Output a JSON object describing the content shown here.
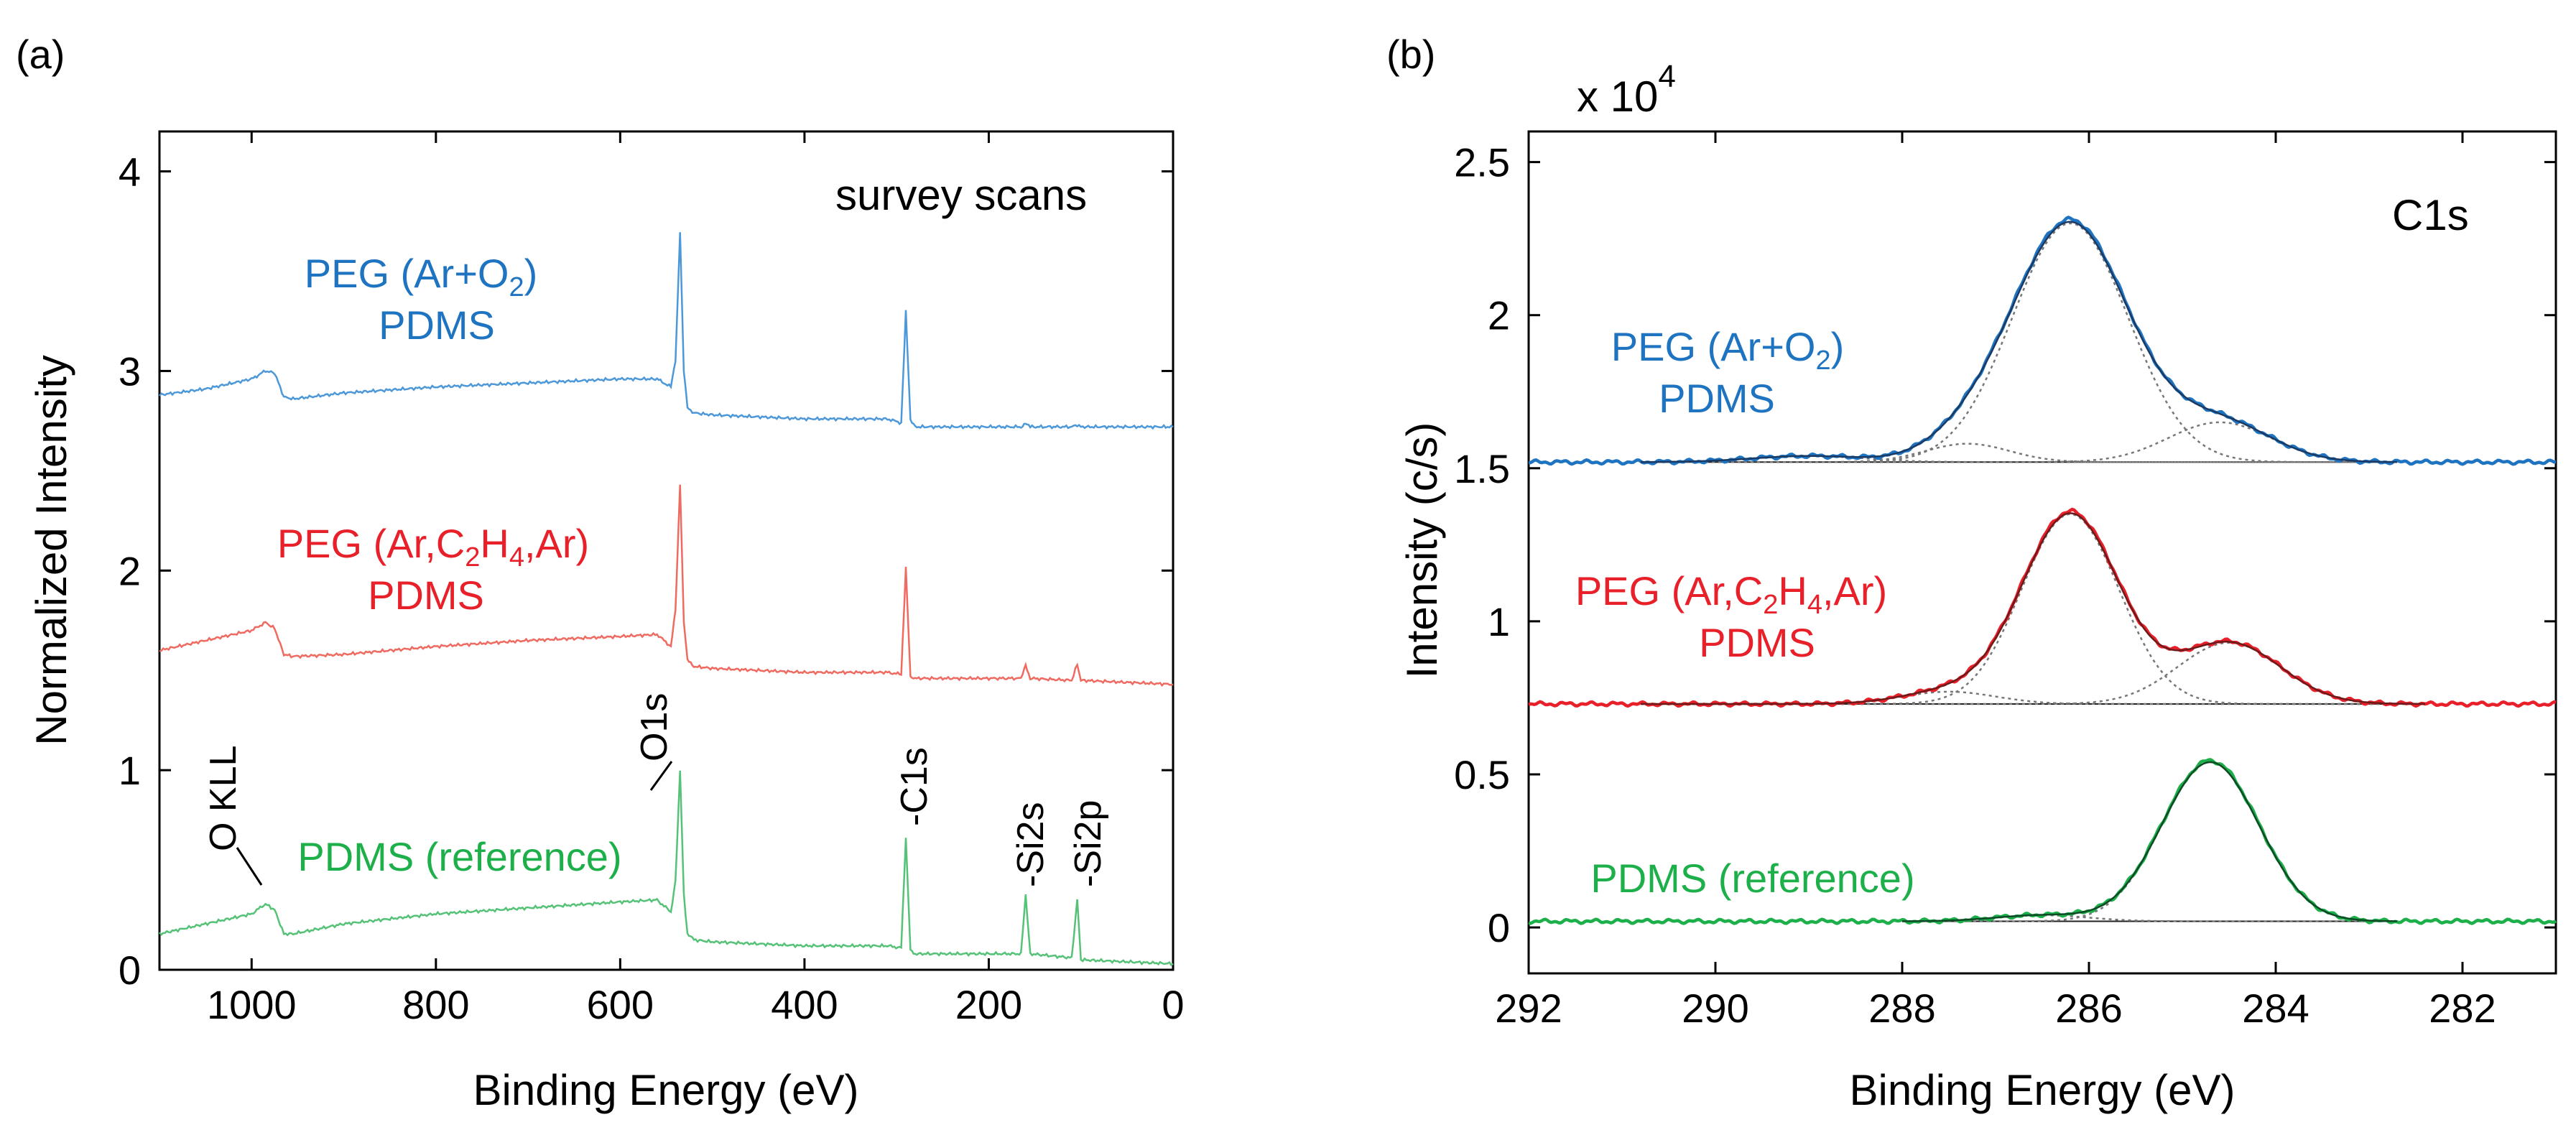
{
  "colors": {
    "peg_ar_o2": "#1f74c2",
    "peg_ar_c2h4_ar": "#e8202a",
    "pdms_ref": "#1db04a",
    "survey_blue": "#4d98d8",
    "survey_red": "#ef6a60",
    "survey_green": "#55c277",
    "dark_blue": "#1b3a63",
    "dark_red": "#6e1a1a",
    "dark_green": "#0d4a25"
  },
  "chart_data": [
    {
      "panel_label": "(a)",
      "type": "line",
      "title": "survey scans",
      "xlabel": "Binding Energy (eV)",
      "ylabel": "Normalized Intensity",
      "xlim": [
        1100,
        0
      ],
      "ylim": [
        0,
        4.2
      ],
      "x_ticks": [
        "1000",
        "800",
        "600",
        "400",
        "200",
        "0"
      ],
      "x_tick_values": [
        1000,
        800,
        600,
        400,
        200,
        0
      ],
      "y_ticks": [
        "0",
        "1",
        "2",
        "3",
        "4"
      ],
      "y_tick_values": [
        0,
        1,
        2,
        3,
        4
      ],
      "series": [
        {
          "name": "PEG (Ar+O2) PDMS",
          "label_line1_pre": "PEG (Ar+O",
          "label_line1_sub": "2",
          "label_line1_post": ")",
          "label_line2": "PDMS",
          "x": [
            1100,
            1050,
            1000,
            985,
            975,
            965,
            955,
            900,
            800,
            700,
            600,
            560,
            545,
            540,
            535,
            531,
            527,
            520,
            500,
            400,
            310,
            295,
            290,
            285,
            280,
            200,
            165,
            160,
            155,
            110,
            104,
            100,
            50,
            0
          ],
          "y": [
            2.88,
            2.91,
            2.96,
            3.0,
            2.99,
            2.87,
            2.86,
            2.89,
            2.92,
            2.94,
            2.96,
            2.96,
            2.92,
            3.05,
            3.7,
            3.0,
            2.82,
            2.79,
            2.78,
            2.76,
            2.76,
            2.74,
            3.3,
            2.75,
            2.72,
            2.72,
            2.72,
            2.74,
            2.72,
            2.72,
            2.73,
            2.72,
            2.72,
            2.72
          ]
        },
        {
          "name": "PEG (Ar,C2H4,Ar) PDMS",
          "label_line1": "PEG (Ar,C",
          "label_line1_sub1": "2",
          "label_line1_mid": "H",
          "label_line1_sub2": "4",
          "label_line1_post": ",Ar)",
          "label_line2": "PDMS",
          "x": [
            1100,
            1050,
            1000,
            985,
            975,
            965,
            955,
            900,
            800,
            700,
            600,
            560,
            545,
            540,
            535,
            531,
            527,
            520,
            500,
            400,
            310,
            295,
            290,
            285,
            280,
            200,
            165,
            160,
            155,
            110,
            104,
            100,
            50,
            0
          ],
          "y": [
            1.6,
            1.65,
            1.7,
            1.74,
            1.71,
            1.58,
            1.57,
            1.58,
            1.62,
            1.65,
            1.67,
            1.68,
            1.62,
            1.8,
            2.43,
            1.75,
            1.55,
            1.52,
            1.51,
            1.49,
            1.49,
            1.48,
            2.02,
            1.47,
            1.46,
            1.46,
            1.46,
            1.53,
            1.46,
            1.45,
            1.53,
            1.45,
            1.44,
            1.43
          ]
        },
        {
          "name": "PDMS (reference)",
          "label": "PDMS (reference)",
          "x": [
            1100,
            1050,
            1000,
            985,
            975,
            965,
            955,
            900,
            800,
            700,
            600,
            560,
            545,
            540,
            535,
            531,
            527,
            520,
            500,
            400,
            310,
            295,
            290,
            285,
            280,
            200,
            165,
            160,
            155,
            110,
            104,
            100,
            50,
            0
          ],
          "y": [
            0.18,
            0.23,
            0.28,
            0.33,
            0.3,
            0.18,
            0.18,
            0.23,
            0.28,
            0.31,
            0.34,
            0.35,
            0.29,
            0.45,
            1.0,
            0.38,
            0.18,
            0.15,
            0.14,
            0.12,
            0.12,
            0.11,
            0.66,
            0.1,
            0.08,
            0.08,
            0.08,
            0.37,
            0.08,
            0.06,
            0.35,
            0.05,
            0.04,
            0.03
          ]
        }
      ],
      "annotations": [
        "O KLL",
        "O1s",
        "-C1s",
        "-Si2s",
        "-Si2p"
      ]
    },
    {
      "panel_label": "(b)",
      "type": "line",
      "title": "C1s",
      "xlabel": "Binding Energy (eV)",
      "ylabel": "Intensity (c/s)",
      "y_multiplier_base": "x 10",
      "y_multiplier_exp": "4",
      "xlim": [
        292,
        281
      ],
      "ylim": [
        -0.15,
        2.6
      ],
      "x_ticks": [
        "292",
        "290",
        "288",
        "286",
        "284",
        "282"
      ],
      "x_tick_values": [
        292,
        290,
        288,
        286,
        284,
        282
      ],
      "y_ticks": [
        "0",
        "0.5",
        "1",
        "1.5",
        "2",
        "2.5"
      ],
      "y_tick_values": [
        0,
        0.5,
        1,
        1.5,
        2,
        2.5
      ],
      "series": [
        {
          "name": "PEG (Ar+O2) PDMS",
          "label_line1_pre": "PEG (Ar+O",
          "label_line1_sub": "2",
          "label_line1_post": ")",
          "label_line2": "PDMS",
          "baseline": 1.52,
          "fit_range": [
            290.8,
            282.7
          ],
          "components": [
            {
              "center": 286.2,
              "amplitude": 0.78,
              "sigma": 0.62
            },
            {
              "center": 287.3,
              "amplitude": 0.06,
              "sigma": 0.45
            },
            {
              "center": 284.6,
              "amplitude": 0.13,
              "sigma": 0.55
            },
            {
              "center": 289.0,
              "amplitude": 0.02,
              "sigma": 0.6
            }
          ]
        },
        {
          "name": "PEG (Ar,C2H4,Ar) PDMS",
          "label_line1": "PEG (Ar,C",
          "label_line1_sub1": "2",
          "label_line1_mid": "H",
          "label_line1_sub2": "4",
          "label_line1_post": ",Ar)",
          "label_line2": "PDMS",
          "baseline": 0.73,
          "fit_range": [
            290.8,
            282.4
          ],
          "components": [
            {
              "center": 286.2,
              "amplitude": 0.62,
              "sigma": 0.52
            },
            {
              "center": 284.5,
              "amplitude": 0.2,
              "sigma": 0.55
            },
            {
              "center": 287.5,
              "amplitude": 0.04,
              "sigma": 0.5
            }
          ]
        },
        {
          "name": "PDMS (reference)",
          "label": "PDMS (reference)",
          "baseline": 0.02,
          "fit_range": [
            288.0,
            282.7
          ],
          "components": [
            {
              "center": 284.7,
              "amplitude": 0.52,
              "sigma": 0.52
            },
            {
              "center": 286.5,
              "amplitude": 0.02,
              "sigma": 0.5
            }
          ]
        }
      ]
    }
  ]
}
